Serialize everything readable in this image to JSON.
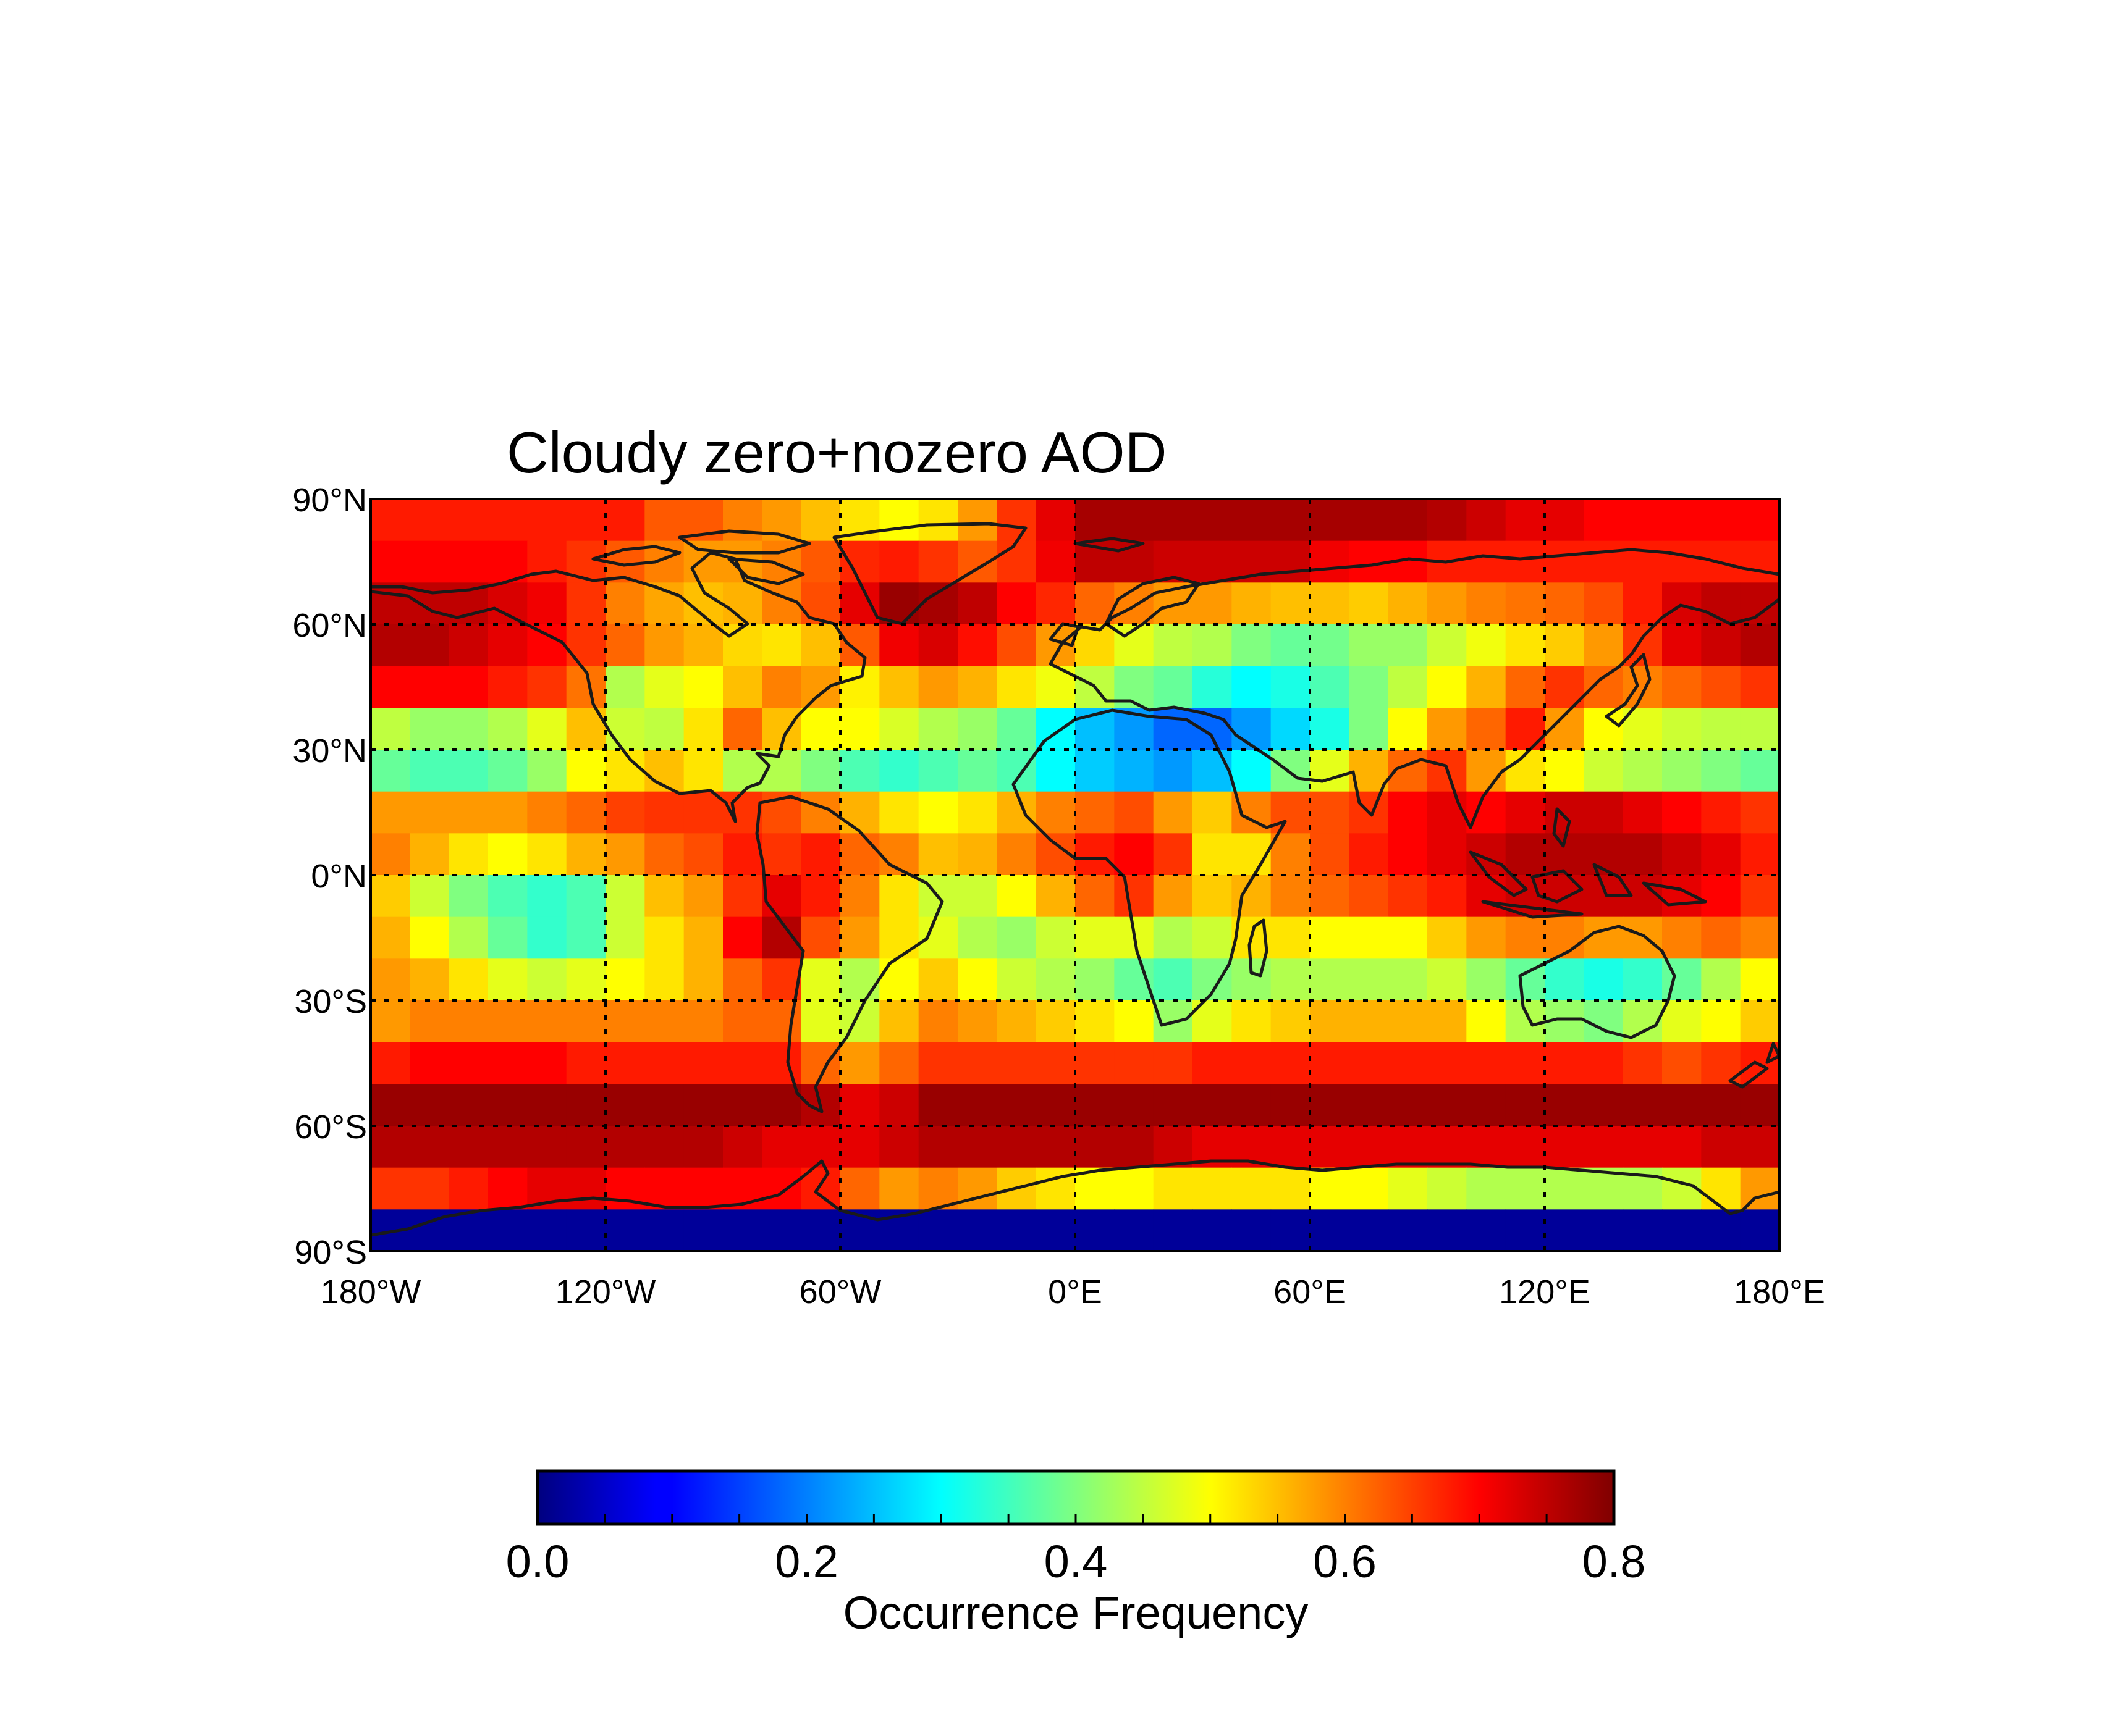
{
  "chart_data": {
    "type": "heatmap",
    "title": "Cloudy zero+nozero AOD",
    "x_ticks": [
      "180°W",
      "120°W",
      "60°W",
      "0°E",
      "60°E",
      "120°E",
      "180°E"
    ],
    "x_tick_values": [
      -180,
      -120,
      -60,
      0,
      60,
      120,
      180
    ],
    "y_ticks": [
      "90°N",
      "60°N",
      "30°N",
      "0°N",
      "30°S",
      "60°S",
      "90°S"
    ],
    "y_tick_values": [
      90,
      60,
      30,
      0,
      -30,
      -60,
      -90
    ],
    "xlim": [
      -180,
      180
    ],
    "ylim": [
      -90,
      90
    ],
    "grid": true,
    "colormap": "jet",
    "colorbar": {
      "label": "Occurrence Frequency",
      "range": [
        0.0,
        0.8
      ],
      "ticks": [
        "0.0",
        "0.2",
        "0.4",
        "0.6",
        "0.8"
      ],
      "tick_values": [
        0.0,
        0.2,
        0.4,
        0.6,
        0.8
      ],
      "orientation": "horizontal",
      "placement": "bottom"
    },
    "cell_size_deg": 10,
    "lon_centers": [
      -175,
      -165,
      -155,
      -145,
      -135,
      -125,
      -115,
      -105,
      -95,
      -85,
      -75,
      -65,
      -55,
      -45,
      -35,
      -25,
      -15,
      -5,
      5,
      15,
      25,
      35,
      45,
      55,
      65,
      75,
      85,
      95,
      105,
      115,
      125,
      135,
      145,
      155,
      165,
      175
    ],
    "lat_centers": [
      85,
      75,
      65,
      55,
      45,
      35,
      25,
      15,
      5,
      -5,
      -15,
      -25,
      -35,
      -45,
      -55,
      -65,
      -75,
      -85
    ],
    "values": [
      [
        0.68,
        0.68,
        0.68,
        0.68,
        0.68,
        0.68,
        0.68,
        0.63,
        0.63,
        0.6,
        0.58,
        0.55,
        0.52,
        0.5,
        0.52,
        0.58,
        0.66,
        0.72,
        0.77,
        0.77,
        0.77,
        0.77,
        0.77,
        0.77,
        0.77,
        0.77,
        0.77,
        0.76,
        0.74,
        0.72,
        0.72,
        0.7,
        0.7,
        0.7,
        0.7,
        0.7
      ],
      [
        0.7,
        0.7,
        0.7,
        0.7,
        0.68,
        0.66,
        0.63,
        0.6,
        0.58,
        0.58,
        0.6,
        0.63,
        0.67,
        0.68,
        0.66,
        0.63,
        0.66,
        0.71,
        0.75,
        0.75,
        0.74,
        0.74,
        0.74,
        0.74,
        0.71,
        0.7,
        0.7,
        0.68,
        0.68,
        0.68,
        0.68,
        0.68,
        0.68,
        0.68,
        0.68,
        0.68
      ],
      [
        0.75,
        0.75,
        0.75,
        0.73,
        0.71,
        0.66,
        0.6,
        0.57,
        0.55,
        0.56,
        0.6,
        0.64,
        0.72,
        0.78,
        0.77,
        0.75,
        0.7,
        0.67,
        0.62,
        0.6,
        0.58,
        0.58,
        0.56,
        0.55,
        0.55,
        0.54,
        0.56,
        0.58,
        0.6,
        0.61,
        0.62,
        0.64,
        0.68,
        0.73,
        0.75,
        0.75
      ],
      [
        0.76,
        0.76,
        0.74,
        0.72,
        0.7,
        0.66,
        0.62,
        0.58,
        0.56,
        0.53,
        0.52,
        0.55,
        0.63,
        0.71,
        0.73,
        0.69,
        0.64,
        0.58,
        0.53,
        0.48,
        0.45,
        0.44,
        0.4,
        0.38,
        0.39,
        0.42,
        0.42,
        0.46,
        0.49,
        0.52,
        0.54,
        0.58,
        0.66,
        0.72,
        0.74,
        0.76
      ],
      [
        0.7,
        0.7,
        0.7,
        0.68,
        0.66,
        0.61,
        0.44,
        0.48,
        0.5,
        0.55,
        0.6,
        0.58,
        0.51,
        0.55,
        0.58,
        0.56,
        0.52,
        0.49,
        0.45,
        0.4,
        0.38,
        0.33,
        0.3,
        0.32,
        0.36,
        0.4,
        0.45,
        0.5,
        0.56,
        0.62,
        0.66,
        0.62,
        0.6,
        0.62,
        0.64,
        0.66
      ],
      [
        0.45,
        0.42,
        0.42,
        0.44,
        0.48,
        0.55,
        0.46,
        0.45,
        0.52,
        0.62,
        0.55,
        0.5,
        0.5,
        0.47,
        0.44,
        0.42,
        0.38,
        0.3,
        0.25,
        0.22,
        0.18,
        0.18,
        0.22,
        0.27,
        0.32,
        0.4,
        0.5,
        0.58,
        0.62,
        0.68,
        0.58,
        0.5,
        0.48,
        0.46,
        0.45,
        0.45
      ],
      [
        0.38,
        0.36,
        0.36,
        0.38,
        0.42,
        0.5,
        0.52,
        0.55,
        0.52,
        0.44,
        0.44,
        0.4,
        0.36,
        0.34,
        0.36,
        0.38,
        0.36,
        0.3,
        0.26,
        0.24,
        0.22,
        0.25,
        0.3,
        0.4,
        0.48,
        0.56,
        0.62,
        0.66,
        0.58,
        0.52,
        0.5,
        0.46,
        0.44,
        0.42,
        0.4,
        0.38
      ],
      [
        0.58,
        0.58,
        0.58,
        0.58,
        0.6,
        0.62,
        0.65,
        0.66,
        0.66,
        0.66,
        0.64,
        0.6,
        0.56,
        0.52,
        0.5,
        0.52,
        0.56,
        0.6,
        0.62,
        0.64,
        0.58,
        0.54,
        0.6,
        0.64,
        0.64,
        0.66,
        0.7,
        0.72,
        0.7,
        0.72,
        0.74,
        0.74,
        0.72,
        0.7,
        0.68,
        0.66
      ],
      [
        0.6,
        0.56,
        0.52,
        0.5,
        0.52,
        0.56,
        0.58,
        0.62,
        0.64,
        0.68,
        0.66,
        0.68,
        0.62,
        0.6,
        0.55,
        0.56,
        0.6,
        0.64,
        0.68,
        0.7,
        0.66,
        0.52,
        0.52,
        0.6,
        0.64,
        0.68,
        0.7,
        0.72,
        0.74,
        0.76,
        0.76,
        0.76,
        0.76,
        0.74,
        0.72,
        0.68
      ],
      [
        0.54,
        0.46,
        0.4,
        0.36,
        0.34,
        0.36,
        0.46,
        0.55,
        0.58,
        0.66,
        0.72,
        0.68,
        0.6,
        0.52,
        0.46,
        0.46,
        0.5,
        0.56,
        0.62,
        0.66,
        0.58,
        0.54,
        0.56,
        0.6,
        0.62,
        0.64,
        0.66,
        0.68,
        0.72,
        0.74,
        0.74,
        0.74,
        0.74,
        0.72,
        0.7,
        0.66
      ],
      [
        0.56,
        0.5,
        0.44,
        0.38,
        0.34,
        0.36,
        0.46,
        0.52,
        0.56,
        0.7,
        0.76,
        0.64,
        0.58,
        0.52,
        0.48,
        0.44,
        0.42,
        0.46,
        0.48,
        0.48,
        0.44,
        0.46,
        0.52,
        0.52,
        0.5,
        0.5,
        0.5,
        0.54,
        0.58,
        0.6,
        0.6,
        0.58,
        0.58,
        0.6,
        0.62,
        0.6
      ],
      [
        0.58,
        0.56,
        0.52,
        0.48,
        0.46,
        0.48,
        0.5,
        0.52,
        0.56,
        0.62,
        0.66,
        0.48,
        0.44,
        0.5,
        0.54,
        0.5,
        0.46,
        0.44,
        0.42,
        0.38,
        0.36,
        0.4,
        0.42,
        0.44,
        0.44,
        0.44,
        0.44,
        0.46,
        0.42,
        0.38,
        0.34,
        0.32,
        0.34,
        0.38,
        0.44,
        0.5
      ],
      [
        0.58,
        0.6,
        0.6,
        0.6,
        0.6,
        0.6,
        0.6,
        0.6,
        0.6,
        0.62,
        0.62,
        0.48,
        0.46,
        0.55,
        0.6,
        0.58,
        0.56,
        0.54,
        0.52,
        0.5,
        0.42,
        0.48,
        0.52,
        0.54,
        0.56,
        0.56,
        0.56,
        0.56,
        0.5,
        0.44,
        0.42,
        0.4,
        0.44,
        0.48,
        0.5,
        0.54
      ],
      [
        0.68,
        0.7,
        0.7,
        0.7,
        0.7,
        0.68,
        0.68,
        0.68,
        0.68,
        0.68,
        0.68,
        0.62,
        0.58,
        0.62,
        0.66,
        0.66,
        0.66,
        0.66,
        0.66,
        0.66,
        0.66,
        0.68,
        0.68,
        0.68,
        0.68,
        0.68,
        0.68,
        0.68,
        0.68,
        0.68,
        0.68,
        0.68,
        0.66,
        0.64,
        0.66,
        0.68
      ],
      [
        0.78,
        0.78,
        0.78,
        0.78,
        0.78,
        0.78,
        0.78,
        0.78,
        0.78,
        0.78,
        0.78,
        0.76,
        0.72,
        0.74,
        0.78,
        0.78,
        0.78,
        0.78,
        0.78,
        0.78,
        0.78,
        0.78,
        0.78,
        0.78,
        0.78,
        0.78,
        0.78,
        0.78,
        0.78,
        0.78,
        0.78,
        0.78,
        0.78,
        0.78,
        0.78,
        0.78
      ],
      [
        0.76,
        0.76,
        0.76,
        0.76,
        0.76,
        0.76,
        0.76,
        0.76,
        0.76,
        0.74,
        0.72,
        0.72,
        0.72,
        0.74,
        0.76,
        0.76,
        0.76,
        0.76,
        0.76,
        0.76,
        0.74,
        0.72,
        0.72,
        0.72,
        0.72,
        0.72,
        0.72,
        0.72,
        0.72,
        0.72,
        0.72,
        0.72,
        0.72,
        0.72,
        0.74,
        0.74
      ],
      [
        0.66,
        0.66,
        0.68,
        0.7,
        0.72,
        0.72,
        0.7,
        0.7,
        0.7,
        0.7,
        0.7,
        0.68,
        0.62,
        0.58,
        0.6,
        0.58,
        0.54,
        0.52,
        0.5,
        0.5,
        0.52,
        0.52,
        0.52,
        0.52,
        0.5,
        0.5,
        0.48,
        0.46,
        0.44,
        0.44,
        0.44,
        0.44,
        0.44,
        0.46,
        0.52,
        0.58
      ],
      [
        0.02,
        0.02,
        0.02,
        0.02,
        0.02,
        0.02,
        0.02,
        0.02,
        0.02,
        0.02,
        0.02,
        0.02,
        0.02,
        0.02,
        0.02,
        0.02,
        0.02,
        0.02,
        0.02,
        0.02,
        0.02,
        0.02,
        0.02,
        0.02,
        0.02,
        0.02,
        0.02,
        0.02,
        0.02,
        0.02,
        0.02,
        0.02,
        0.02,
        0.02,
        0.02,
        0.02
      ]
    ]
  }
}
